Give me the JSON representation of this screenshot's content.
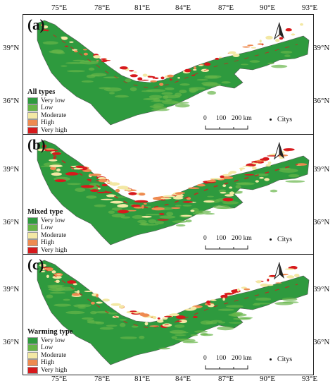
{
  "axes": {
    "lon_labels": [
      "75°E",
      "78°E",
      "81°E",
      "84°E",
      "87°E",
      "90°E",
      "93°E"
    ],
    "lat_labels": [
      "39°N",
      "36°N"
    ]
  },
  "legend_classes": [
    "Very low",
    "Low",
    "Moderate",
    "High",
    "Very high"
  ],
  "legend_colors": [
    "#2e9a3e",
    "#67b548",
    "#f3e8a4",
    "#ee8a50",
    "#d7191c"
  ],
  "scale_bar": {
    "labels": [
      "0",
      "100",
      "200 km"
    ]
  },
  "city_label": "Citys",
  "panels": [
    {
      "label": "(a)",
      "legend_title": "All types",
      "high_risk_density": "low"
    },
    {
      "label": "(b)",
      "legend_title": "Mixed type",
      "high_risk_density": "high"
    },
    {
      "label": "(c)",
      "legend_title": "Warming type",
      "high_risk_density": "medium"
    }
  ]
}
